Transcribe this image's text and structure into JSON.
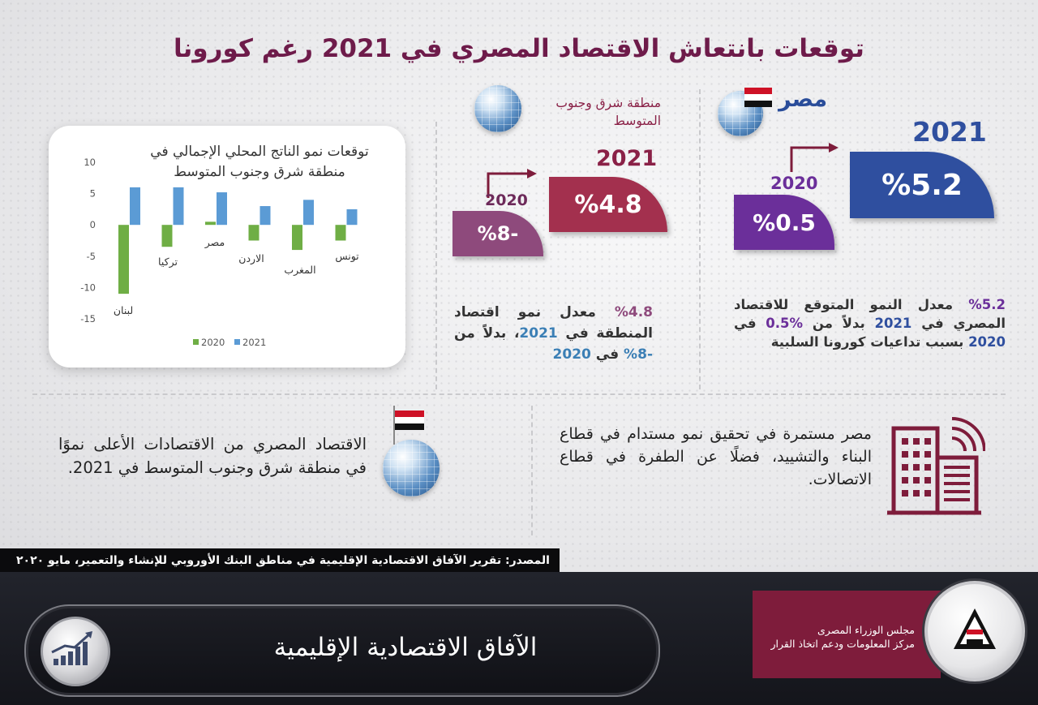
{
  "title": "توقعات بانتعاش الاقتصاد المصري في 2021 رغم كورونا",
  "region": {
    "label": "منطقة شرق وجنوب المتوسط",
    "year_2020": "2020",
    "year_2021": "2021",
    "value_2020": "%8-",
    "value_2021": "%4.8",
    "description_value": "%4.8",
    "description_text": "معدل نمو اقتصاد المنطقة في",
    "description_year1": "2021",
    "description_mid": "، بدلاً من",
    "description_value2": "-8%",
    "description_in": "في",
    "description_year2": "2020"
  },
  "egypt": {
    "label": "مصر",
    "year_2020": "2020",
    "year_2021": "2021",
    "value_2020": "%0.5",
    "value_2021": "%5.2",
    "description_value": "%5.2",
    "description_text1": "معدل النمو المتوقع للاقتصاد المصري في",
    "description_year1": "2021",
    "description_mid": "بدلاً من",
    "description_value2": "%0.5",
    "description_in": "في",
    "description_year2": "2020",
    "description_text2": "بسبب تداعيات كورونا السلبية"
  },
  "note_left": "الاقتصاد المصري من الاقتصادات الأعلى نموًا في منطقة شرق وجنوب المتوسط في 2021.",
  "note_right": "مصر مستمرة في تحقيق نمو مستدام في قطاع البناء والتشييد، فضلًا عن الطفرة في قطاع الاتصالات.",
  "source": "المصدر:  تقرير الآفاق الاقتصادية الإقليمية في مناطق البنك الأوروبي للإنشاء والتعمير، مايو ٢٠٢٠",
  "footer_title": "الآفاق الاقتصادية الإقليمية",
  "cabinet": {
    "line1": "مجلس الوزراء المصرى",
    "line2": "مركز المعلومات ودعم اتخاذ القرار"
  },
  "colors": {
    "series_2020": "#6fae45",
    "series_2021": "#5b9bd5",
    "region_2021": "#a3304e",
    "region_2020": "#8e4a7c",
    "egypt_2021": "#2f4f9f",
    "egypt_2020": "#6b2f9a",
    "title": "#6e1b4a"
  },
  "chart_data": {
    "type": "bar",
    "title": "توقعات نمو الناتج المحلي الإجمالي في منطقة شرق وجنوب المتوسط",
    "categories": [
      "لبنان",
      "تركيا",
      "مصر",
      "الاردن",
      "المغرب",
      "تونس"
    ],
    "series": [
      {
        "name": "2020",
        "values": [
          -11,
          -3.5,
          0.5,
          -2.5,
          -4,
          -2.5
        ]
      },
      {
        "name": "2021",
        "values": [
          6,
          6,
          5.2,
          3,
          4,
          2.5
        ]
      }
    ],
    "yticks": [
      "10",
      "5",
      "0",
      "-5",
      "-10",
      "-15"
    ],
    "ylim": [
      -15,
      10
    ],
    "legend": [
      "2020",
      "2021"
    ],
    "legend_position": "bottom"
  }
}
